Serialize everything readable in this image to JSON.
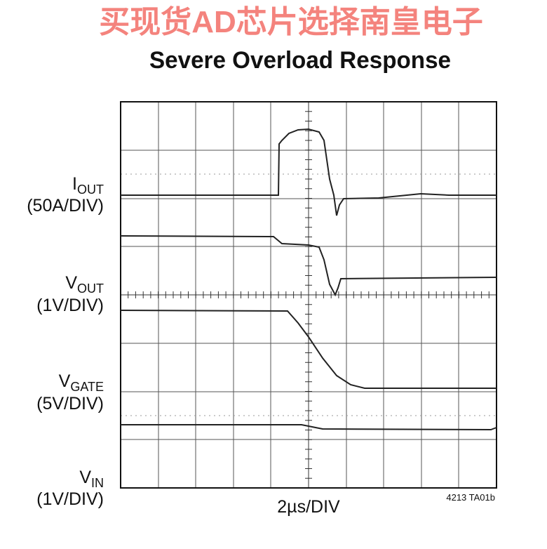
{
  "header": {
    "watermark": "买现货AD芯片选择南皇电子",
    "title": "Severe Overload Response"
  },
  "channels": [
    {
      "name": "I",
      "sub": "OUT",
      "scale": "(50A/DIV)"
    },
    {
      "name": "V",
      "sub": "OUT",
      "scale": "(1V/DIV)"
    },
    {
      "name": "V",
      "sub": "GATE",
      "scale": "(5V/DIV)"
    },
    {
      "name": "V",
      "sub": "IN",
      "scale": "(1V/DIV)"
    }
  ],
  "x_label": "2µs/DIV",
  "figure_code": "4213 TA01b"
}
